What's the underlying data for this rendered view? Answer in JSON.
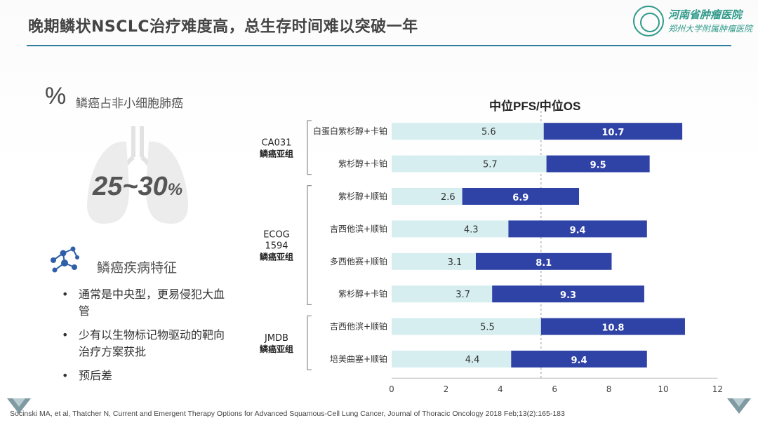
{
  "slide": {
    "title": "晚期鳞状NSCLC治疗难度高，总生存时间难以突破一年",
    "logo_name": "河南省肿瘤医院",
    "logo_sub": "郑州大学附属肿瘤医院"
  },
  "stat": {
    "symbol": "%",
    "label": "鳞癌占非小细胞肺癌",
    "value": "25~30",
    "unit": "%"
  },
  "features": {
    "title": "鳞癌疾病特征",
    "items": [
      "通常是中央型，更易侵犯大血管",
      "少有以生物标记物驱动的靶向治疗方案获批",
      "预后差"
    ]
  },
  "citation": "Socinski MA, et al, Thatcher N, Current and Emergent Therapy Options for Advanced Squamous-Cell Lung Cancer, Journal of Thoracic Oncology 2018 Feb;13(2):165-183",
  "chart_data": {
    "type": "bar",
    "title": "中位PFS/中位OS",
    "xlim": [
      0,
      12
    ],
    "xticks": [
      0,
      2,
      4,
      6,
      8,
      10,
      12
    ],
    "reference_line": 5.5,
    "colors": {
      "pfs": "#d6eef0",
      "os": "#2f42a6"
    },
    "groups": [
      {
        "label_lines": [
          "CA031",
          "鳞癌亚组"
        ],
        "rows": [
          0,
          1
        ]
      },
      {
        "label_lines": [
          "ECOG",
          "1594",
          "鳞癌亚组"
        ],
        "rows": [
          2,
          3,
          4,
          5
        ]
      },
      {
        "label_lines": [
          "JMDB",
          "鳞癌亚组"
        ],
        "rows": [
          6,
          7
        ]
      }
    ],
    "categories": [
      "白蛋白紫杉醇+卡铂",
      "紫杉醇+卡铂",
      "紫杉醇+顺铂",
      "吉西他滨+顺铂",
      "多西他赛+顺铂",
      "紫杉醇+卡铂",
      "吉西他滨+顺铂",
      "培美曲塞+顺铂"
    ],
    "series": [
      {
        "name": "中位PFS",
        "values": [
          5.6,
          5.7,
          2.6,
          4.3,
          3.1,
          3.7,
          5.5,
          4.4
        ]
      },
      {
        "name": "中位OS",
        "values": [
          10.7,
          9.5,
          6.9,
          9.4,
          8.1,
          9.3,
          10.8,
          9.4
        ]
      }
    ]
  }
}
